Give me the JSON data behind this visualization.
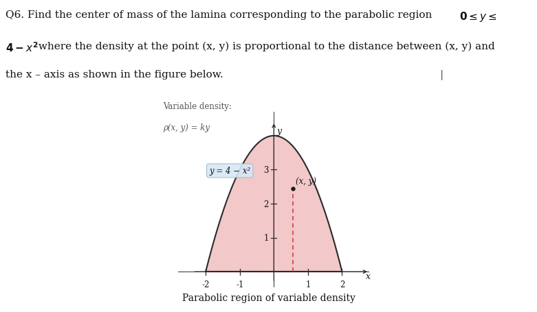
{
  "fig_width": 7.81,
  "fig_height": 4.56,
  "dpi": 100,
  "bg_color": "#ffffff",
  "subtitle": "Parabolic region of variable density",
  "var_density_line1": "Variable density:",
  "var_density_line2": "ρ(x, y) = ky",
  "curve_label": "y = 4 − x²",
  "point_label": "(x, y)",
  "fill_color": "#f2c8c8",
  "curve_color": "#2b2b2b",
  "axis_color": "#2b2b2b",
  "dashed_color": "#cc3333",
  "point_color": "#1a1a1a",
  "label_box_color": "#d8e8f5",
  "label_box_edge": "#a0b8cc",
  "point_x": 0.55,
  "point_y": 2.45,
  "xlim": [
    -2.8,
    2.8
  ],
  "ylim": [
    -0.45,
    4.7
  ],
  "xticks": [
    -2,
    -1,
    1,
    2
  ],
  "yticks": [
    1,
    2,
    3
  ],
  "tick_fontsize": 8.5,
  "axes_label_fontsize": 9,
  "curve_label_fontsize": 8.5,
  "point_label_fontsize": 8.5,
  "var_density_fontsize": 8.5,
  "subtitle_fontsize": 10,
  "question_fontsize": 11
}
